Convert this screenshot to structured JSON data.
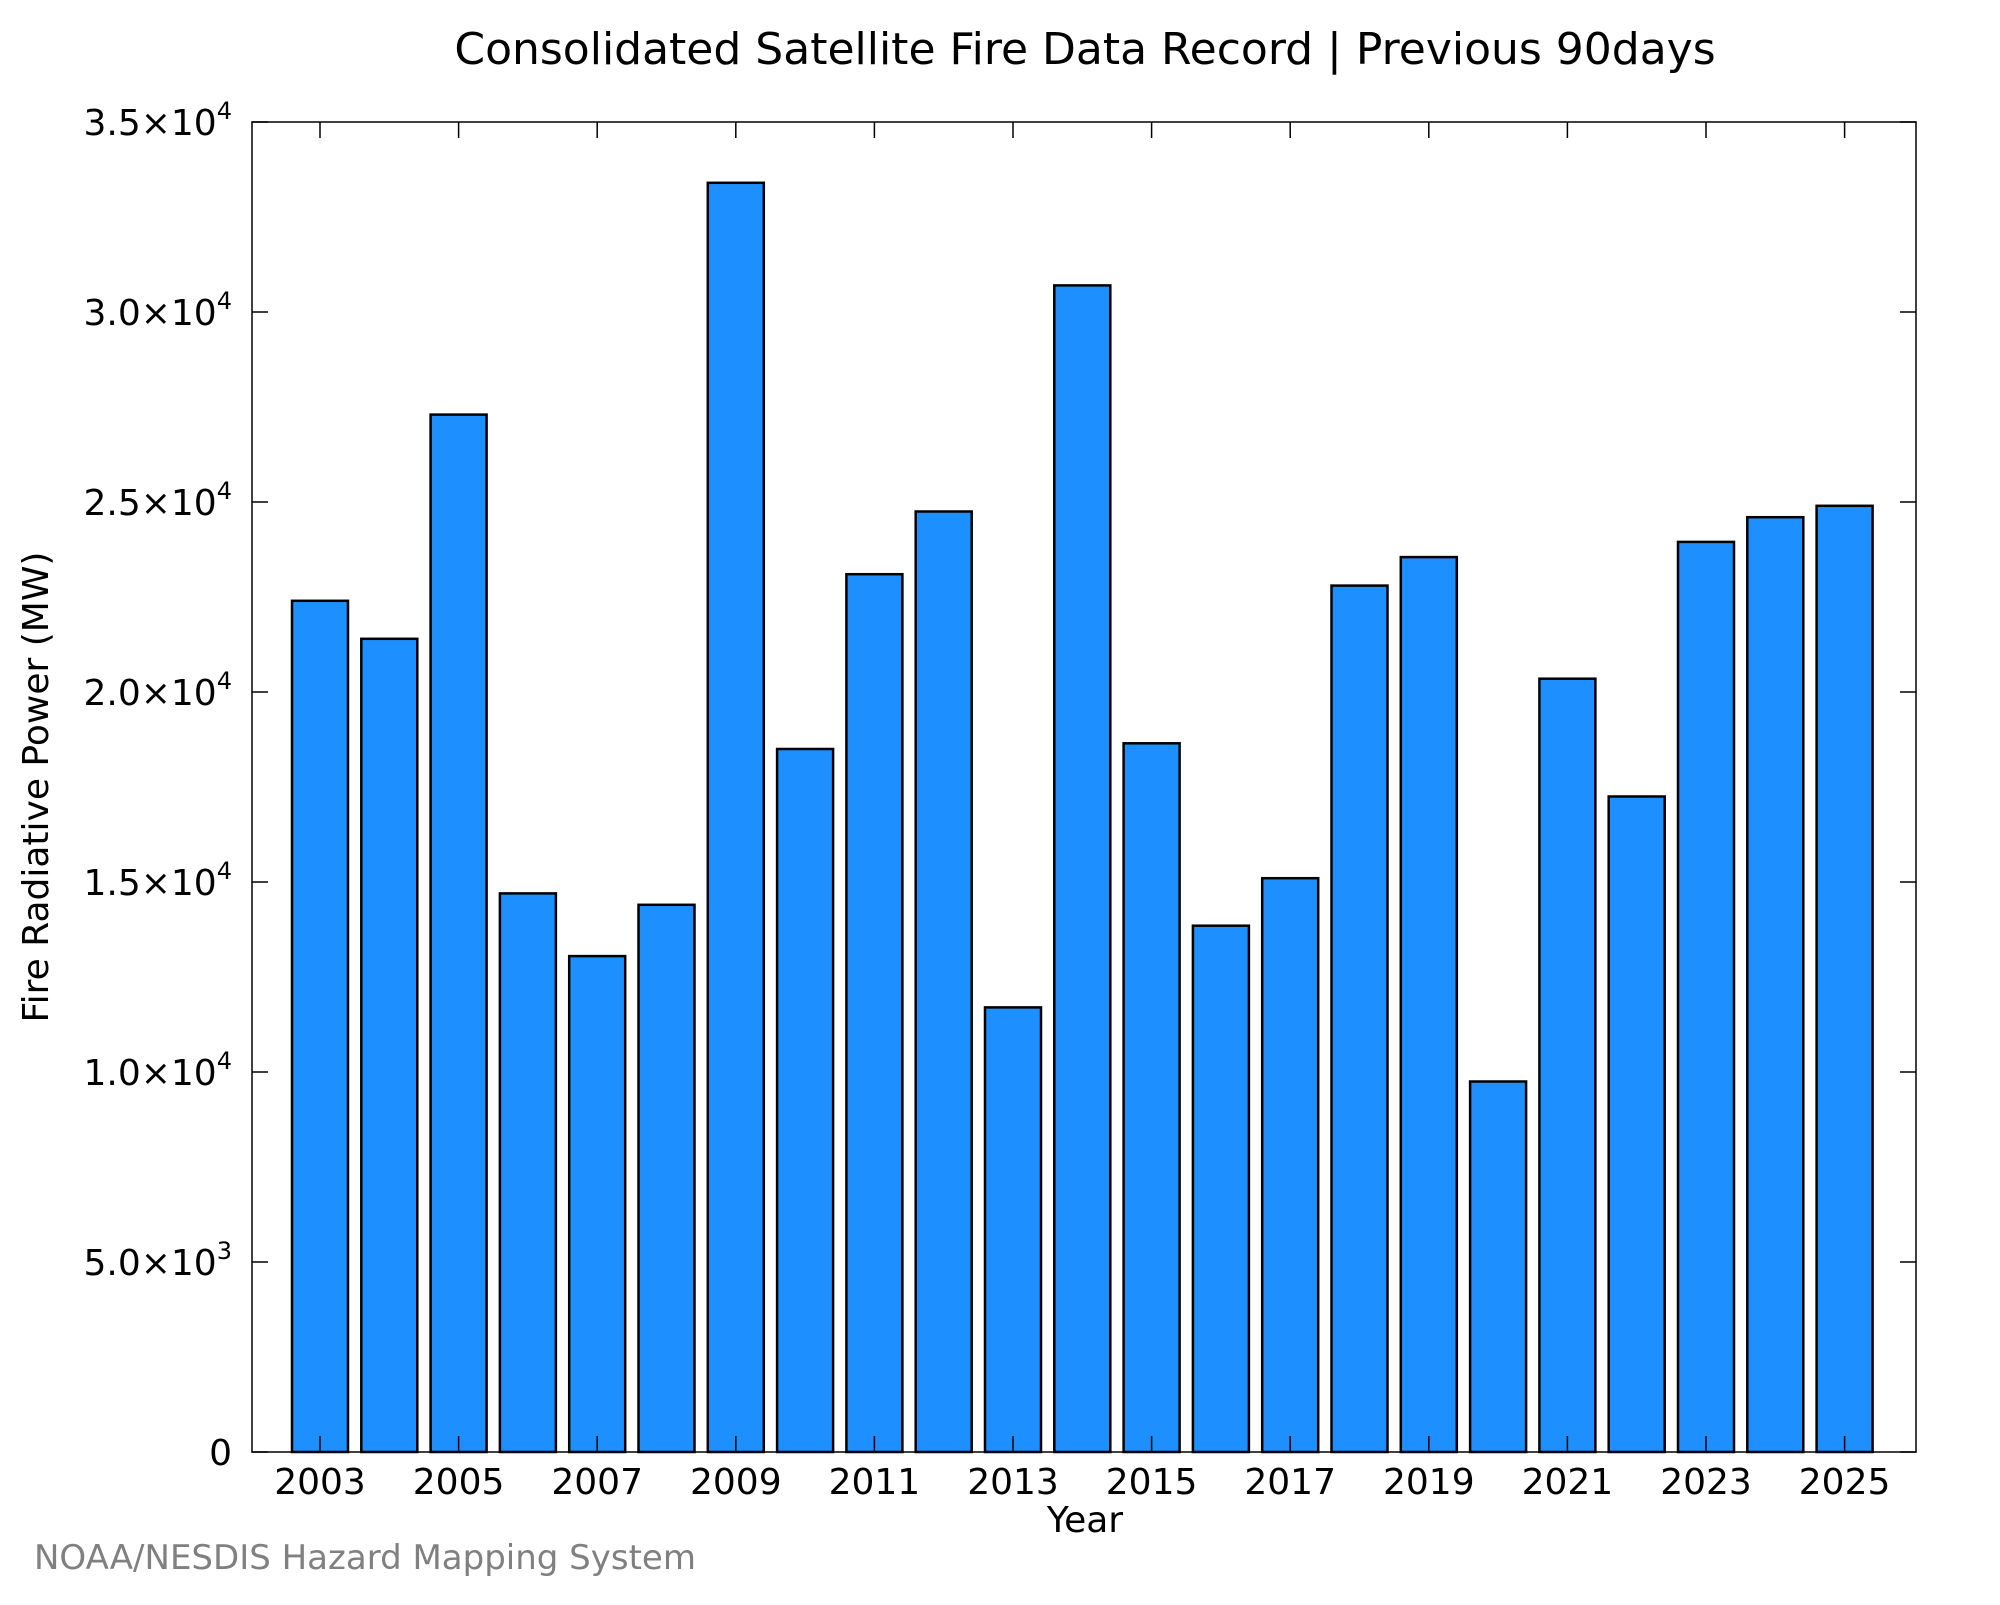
{
  "colors": {
    "bar_fill": "#1e8fff",
    "bar_stroke": "#000000",
    "axis": "#000000",
    "credit_text": "#808080"
  },
  "credit": "NOAA/NESDIS Hazard Mapping System",
  "chart_data": {
    "type": "bar",
    "title": "Consolidated Satellite Fire Data Record | Previous 90days",
    "xlabel": "Year",
    "ylabel": "Fire Radiative Power (MW)",
    "ylim": [
      0,
      35000
    ],
    "grid": false,
    "categories": [
      "2003",
      "2004",
      "2005",
      "2006",
      "2007",
      "2008",
      "2009",
      "2010",
      "2011",
      "2012",
      "2013",
      "2014",
      "2015",
      "2016",
      "2017",
      "2018",
      "2019",
      "2020",
      "2021",
      "2022",
      "2023",
      "2024",
      "2025"
    ],
    "values": [
      22400,
      21400,
      27300,
      14700,
      13050,
      14400,
      33400,
      18500,
      23100,
      24750,
      11700,
      30700,
      18650,
      13850,
      15100,
      22800,
      23550,
      9750,
      20350,
      17250,
      23950,
      24600,
      24900
    ],
    "x_tick_labels": [
      "2003",
      "2005",
      "2007",
      "2009",
      "2011",
      "2013",
      "2015",
      "2017",
      "2019",
      "2021",
      "2023",
      "2025"
    ],
    "y_ticks": [
      {
        "value": 0,
        "mantissa": "0",
        "exponent": ""
      },
      {
        "value": 5000,
        "mantissa": "5.0×10",
        "exponent": "3"
      },
      {
        "value": 10000,
        "mantissa": "1.0×10",
        "exponent": "4"
      },
      {
        "value": 15000,
        "mantissa": "1.5×10",
        "exponent": "4"
      },
      {
        "value": 20000,
        "mantissa": "2.0×10",
        "exponent": "4"
      },
      {
        "value": 25000,
        "mantissa": "2.5×10",
        "exponent": "4"
      },
      {
        "value": 30000,
        "mantissa": "3.0×10",
        "exponent": "4"
      },
      {
        "value": 35000,
        "mantissa": "3.5×10",
        "exponent": "4"
      }
    ]
  }
}
